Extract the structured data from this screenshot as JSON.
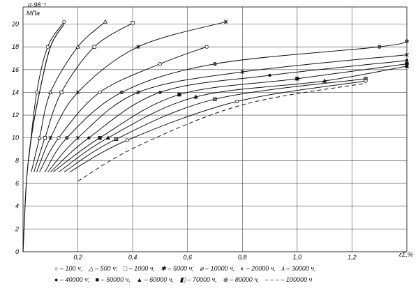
{
  "chart_data": {
    "type": "line",
    "ylabel_top": "σ·98⁻¹",
    "ylabel_unit": "МПа",
    "xlabel": "εΣ,%",
    "xlim": [
      0,
      1.4
    ],
    "ylim": [
      0,
      21.5
    ],
    "x_ticks": [
      0.2,
      0.4,
      0.6,
      0.8,
      1.0,
      1.2
    ],
    "x_tick_labels": [
      "0,2",
      "0,4",
      "0,6",
      "0,8",
      "1,0",
      "1,2"
    ],
    "y_ticks": [
      0,
      2,
      4,
      6,
      8,
      10,
      12,
      14,
      16,
      18,
      20
    ],
    "grid": true,
    "elastic_line": [
      [
        0,
        0
      ],
      [
        0.012,
        6
      ],
      [
        0.03,
        10
      ],
      [
        0.06,
        14
      ],
      [
        0.1,
        18
      ],
      [
        0.15,
        20
      ]
    ],
    "series": [
      {
        "name": "100 ч",
        "marker": "o",
        "points": [
          [
            0.02,
            8
          ],
          [
            0.05,
            14
          ],
          [
            0.09,
            18
          ],
          [
            0.15,
            20.2
          ]
        ]
      },
      {
        "name": "500 ч",
        "marker": "triangle",
        "points": [
          [
            0.03,
            7
          ],
          [
            0.06,
            10
          ],
          [
            0.1,
            14
          ],
          [
            0.2,
            18
          ],
          [
            0.3,
            20.2
          ]
        ]
      },
      {
        "name": "1000 ч",
        "marker": "square",
        "points": [
          [
            0.04,
            7
          ],
          [
            0.08,
            10
          ],
          [
            0.14,
            14
          ],
          [
            0.26,
            18
          ],
          [
            0.4,
            20.1
          ]
        ]
      },
      {
        "name": "5000 ч",
        "marker": "x",
        "points": [
          [
            0.05,
            7
          ],
          [
            0.1,
            10
          ],
          [
            0.2,
            14
          ],
          [
            0.42,
            18
          ],
          [
            0.74,
            20.2
          ]
        ]
      },
      {
        "name": "10000 ч",
        "marker": "slashed-circle",
        "points": [
          [
            0.06,
            7
          ],
          [
            0.13,
            10
          ],
          [
            0.28,
            14
          ],
          [
            0.5,
            16.5
          ],
          [
            0.67,
            18
          ]
        ]
      },
      {
        "name": "20000 ч",
        "marker": "half-circle",
        "points": [
          [
            0.08,
            7
          ],
          [
            0.16,
            10
          ],
          [
            0.36,
            14
          ],
          [
            0.7,
            16.5
          ],
          [
            1.3,
            18
          ],
          [
            1.4,
            18.5
          ]
        ]
      },
      {
        "name": "30000 ч",
        "marker": "lambda",
        "points": [
          [
            0.09,
            7
          ],
          [
            0.2,
            10
          ],
          [
            0.42,
            14
          ],
          [
            0.8,
            15.8
          ],
          [
            1.4,
            17.3
          ]
        ]
      },
      {
        "name": "40000 ч",
        "marker": "filled-circle",
        "points": [
          [
            0.1,
            7
          ],
          [
            0.24,
            10
          ],
          [
            0.5,
            14
          ],
          [
            0.9,
            15.5
          ],
          [
            1.4,
            16.8
          ]
        ]
      },
      {
        "name": "50000 ч",
        "marker": "filled-square",
        "points": [
          [
            0.11,
            7
          ],
          [
            0.28,
            10
          ],
          [
            0.57,
            13.8
          ],
          [
            1.0,
            15.2
          ],
          [
            1.4,
            16.5
          ]
        ]
      },
      {
        "name": "60000 ч",
        "marker": "filled-triangle",
        "points": [
          [
            0.13,
            7
          ],
          [
            0.31,
            10
          ],
          [
            0.63,
            13.6
          ],
          [
            1.1,
            15.0
          ],
          [
            1.4,
            16.3
          ]
        ]
      },
      {
        "name": "70000 ч",
        "marker": "half-square",
        "points": [
          [
            0.15,
            7
          ],
          [
            0.34,
            9.9
          ],
          [
            0.7,
            13.4
          ],
          [
            1.25,
            15.2
          ]
        ]
      },
      {
        "name": "80000 ч",
        "marker": "crossed-circle",
        "points": [
          [
            0.17,
            7
          ],
          [
            0.38,
            9.8
          ],
          [
            0.78,
            13.2
          ],
          [
            1.25,
            15.0
          ]
        ]
      },
      {
        "name": "100000 ч",
        "marker": "dashed",
        "points": [
          [
            0.2,
            6.2
          ],
          [
            0.42,
            9.3
          ],
          [
            0.8,
            12.9
          ],
          [
            1.25,
            14.8
          ]
        ]
      }
    ],
    "legend_rows": [
      [
        "○ – 100 ч,",
        "△ – 500 ч;",
        "□ – 1000 ч,",
        "✱ – 5000 ч;",
        "⌀ – 10000 ч,",
        "◐ – 20000 ч,",
        "λ – 30000 ч,"
      ],
      [
        "● – 40000 ч;",
        "■ – 50000 ч,",
        "▲ – 60000 ч,",
        "◧ – 70000 ч,",
        "⊗ – 80000 ч,",
        "– – – – 100000 ч"
      ]
    ]
  }
}
